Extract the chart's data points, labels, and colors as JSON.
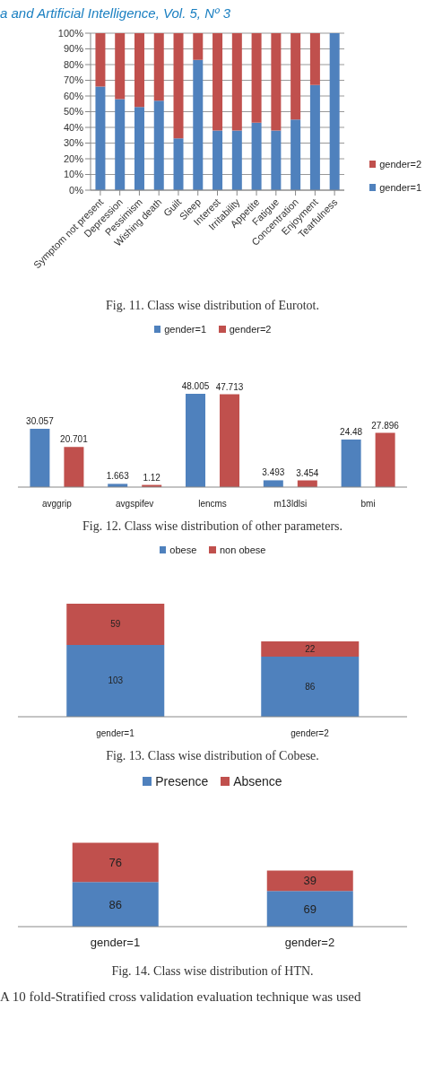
{
  "chart_data": [
    {
      "type": "bar",
      "stacked": true,
      "categories": [
        "Symptom not present",
        "Depression",
        "Pessimism",
        "Wishing death",
        "Guilt",
        "Sleep",
        "Interest",
        "Irritability",
        "Appetite",
        "Fatigue",
        "Concentration",
        "Enjoyment",
        "Tearfulness"
      ],
      "series": [
        {
          "name": "gender=1",
          "color": "#4f81bd",
          "values": [
            66,
            58,
            53,
            57,
            33,
            83,
            38,
            38,
            43,
            38,
            45,
            67,
            100
          ]
        },
        {
          "name": "gender=2",
          "color": "#c0504d",
          "values": [
            34,
            42,
            47,
            43,
            67,
            17,
            62,
            62,
            57,
            62,
            55,
            33,
            0
          ]
        }
      ],
      "ylim": [
        0,
        100
      ],
      "yticks": [
        {
          "value": 0,
          "label": "0%"
        },
        {
          "value": 10,
          "label": "10%"
        },
        {
          "value": 20,
          "label": "20%"
        },
        {
          "value": 30,
          "label": "30%"
        },
        {
          "value": 40,
          "label": "40%"
        },
        {
          "value": 50,
          "label": "50%"
        },
        {
          "value": 60,
          "label": "60%"
        },
        {
          "value": 70,
          "label": "70%"
        },
        {
          "value": 80,
          "label": "80%"
        },
        {
          "value": 90,
          "label": "90%"
        },
        {
          "value": 100,
          "label": "100%"
        }
      ],
      "grid": "y",
      "legend": "right",
      "annotations": [
        "a and Artificial Intelligence, Vol. 5, Nº 3",
        "Fig. 11. Class wise distribution of Eurotot."
      ]
    },
    {
      "type": "bar",
      "categories": [
        "avggrip",
        "avgspifev",
        "lencms",
        "m13ldlsi",
        "bmi"
      ],
      "series": [
        {
          "name": "gender=1",
          "color": "#4f81bd",
          "values": [
            30.057,
            1.663,
            48.005,
            3.493,
            24.48
          ]
        },
        {
          "name": "gender=2",
          "color": "#c0504d",
          "values": [
            20.701,
            1.12,
            47.713,
            3.454,
            27.896
          ]
        }
      ],
      "data_labels": true,
      "legend": "top",
      "tick_labels": "x",
      "annotations": [
        "Fig. 12. Class wise distribution of other parameters."
      ]
    },
    {
      "type": "bar",
      "stacked": true,
      "categories": [
        "gender=1",
        "gender=2"
      ],
      "series": [
        {
          "name": "obese",
          "color": "#4f81bd",
          "values": [
            103,
            86
          ]
        },
        {
          "name": "non obese",
          "color": "#c0504d",
          "values": [
            59,
            22
          ]
        }
      ],
      "data_labels": true,
      "legend": "top",
      "tick_labels": "x",
      "annotations": [
        "Fig. 13. Class wise distribution of Cobese."
      ]
    },
    {
      "type": "bar",
      "stacked": true,
      "categories": [
        "gender=1",
        "gender=2"
      ],
      "series": [
        {
          "name": "Presence",
          "color": "#4f81bd",
          "values": [
            86,
            69
          ]
        },
        {
          "name": "Absence",
          "color": "#c0504d",
          "values": [
            76,
            39
          ]
        }
      ],
      "data_labels": true,
      "legend": "top",
      "tick_labels": "x",
      "annotations": [
        "Fig. 14. Class wise distribution of HTN.",
        "A 10 fold-Stratified cross validation evaluation technique was used"
      ]
    }
  ]
}
